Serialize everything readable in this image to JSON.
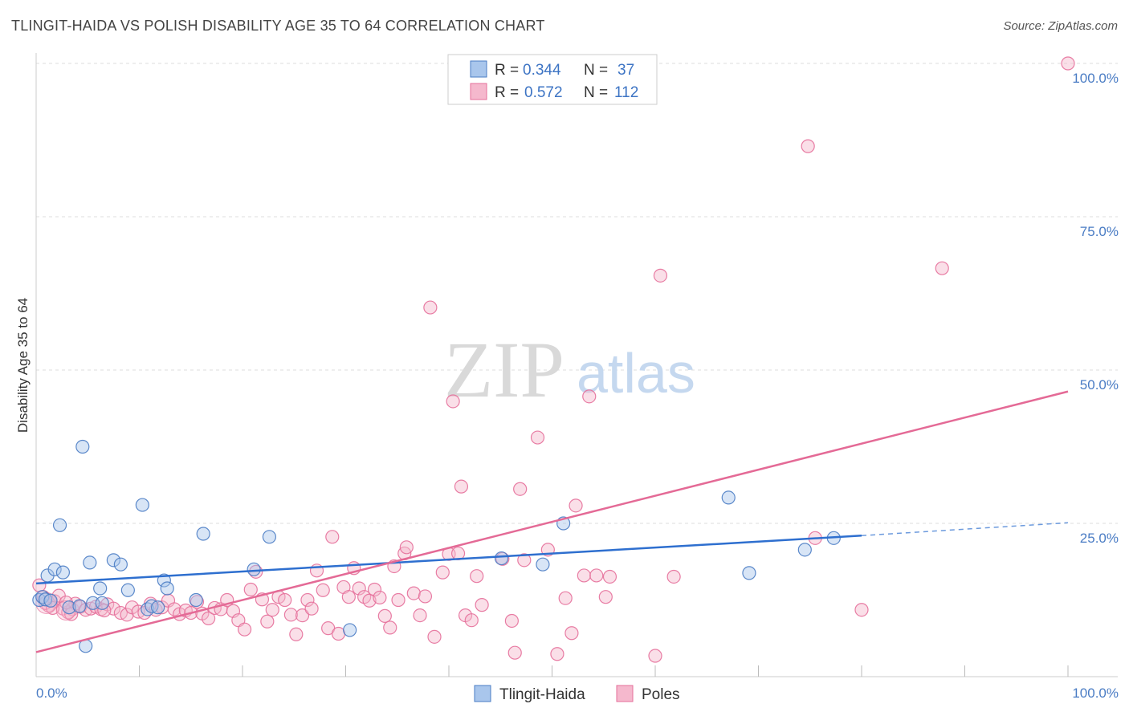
{
  "title": "TLINGIT-HAIDA VS POLISH DISABILITY AGE 35 TO 64 CORRELATION CHART",
  "source": "Source: ZipAtlas.com",
  "watermark": {
    "zip": "ZIP",
    "atlas": "atlas"
  },
  "colors": {
    "blue": "#4a7cc4",
    "blue_fill": "#a9c6ec",
    "blue_line": "#2e6fcf",
    "pink": "#e56f9a",
    "pink_fill": "#f5b8cd",
    "pink_line": "#e46a96",
    "grid": "#dddddd",
    "axis_text": "#4a7cc4"
  },
  "legend": {
    "rows": [
      {
        "r_label": "R =",
        "r_value": "0.344",
        "n_label": "N =",
        "n_value": "37",
        "series": "Tlingit-Haida"
      },
      {
        "r_label": "R =",
        "r_value": "0.572",
        "n_label": "N =",
        "n_value": "112",
        "series": "Poles"
      }
    ]
  },
  "bottom_legend": [
    "Tlingit-Haida",
    "Poles"
  ],
  "chart_data": {
    "type": "scatter",
    "title": "TLINGIT-HAIDA VS POLISH DISABILITY AGE 35 TO 64 CORRELATION CHART",
    "xlabel": "",
    "ylabel": "Disability Age 35 to 64",
    "xlim": [
      0,
      100
    ],
    "ylim": [
      0,
      100
    ],
    "x_tick_labels": [
      {
        "value": 0,
        "label": "0.0%"
      },
      {
        "value": 100,
        "label": "100.0%"
      }
    ],
    "y_tick_labels": [
      {
        "value": 25,
        "label": "25.0%"
      },
      {
        "value": 50,
        "label": "50.0%"
      },
      {
        "value": 75,
        "label": "75.0%"
      },
      {
        "value": 100,
        "label": "100.0%"
      }
    ],
    "legend_position": "top-center",
    "series": [
      {
        "name": "Tlingit-Haida",
        "color": "#4a7cc4",
        "r": 0.344,
        "n": 37,
        "trend": {
          "x0": 0,
          "y0": 15.2,
          "x1": 80,
          "y1": 23.0,
          "dashed_to_x": 100,
          "dashed_to_y": 25.1
        },
        "points": [
          [
            0.3,
            12.5
          ],
          [
            0.6,
            13.0
          ],
          [
            0.9,
            12.6
          ],
          [
            1.1,
            16.5
          ],
          [
            1.8,
            17.5
          ],
          [
            2.3,
            24.7
          ],
          [
            2.6,
            17.0
          ],
          [
            3.2,
            11.3
          ],
          [
            4.2,
            11.5
          ],
          [
            4.5,
            37.5
          ],
          [
            5.2,
            18.6
          ],
          [
            5.5,
            12.0
          ],
          [
            6.2,
            14.4
          ],
          [
            6.4,
            12.0
          ],
          [
            7.5,
            19.0
          ],
          [
            8.2,
            18.3
          ],
          [
            8.9,
            14.1
          ],
          [
            10.3,
            28.0
          ],
          [
            10.8,
            11.0
          ],
          [
            11.2,
            11.5
          ],
          [
            11.8,
            11.3
          ],
          [
            12.4,
            15.7
          ],
          [
            12.7,
            14.4
          ],
          [
            15.5,
            12.5
          ],
          [
            16.2,
            23.3
          ],
          [
            21.1,
            17.5
          ],
          [
            22.6,
            22.8
          ],
          [
            30.4,
            7.6
          ],
          [
            45.1,
            19.3
          ],
          [
            49.1,
            18.3
          ],
          [
            51.1,
            25.0
          ],
          [
            67.1,
            29.2
          ],
          [
            69.1,
            16.9
          ],
          [
            74.5,
            20.7
          ],
          [
            77.3,
            22.6
          ],
          [
            4.8,
            5.0
          ],
          [
            1.4,
            12.4
          ]
        ]
      },
      {
        "name": "Poles",
        "color": "#e56f9a",
        "r": 0.572,
        "n": 112,
        "trend": {
          "x0": 0,
          "y0": 4.0,
          "x1": 100,
          "y1": 46.5
        },
        "points": [
          [
            0.3,
            14.9
          ],
          [
            0.7,
            13.0
          ],
          [
            1.2,
            11.6
          ],
          [
            1.8,
            12.3
          ],
          [
            2.2,
            13.2
          ],
          [
            2.6,
            11.1
          ],
          [
            3.1,
            10.5
          ],
          [
            3.5,
            11.0
          ],
          [
            3.8,
            11.9
          ],
          [
            4.3,
            11.4
          ],
          [
            4.8,
            10.9
          ],
          [
            5.3,
            11.1
          ],
          [
            5.8,
            11.4
          ],
          [
            6.3,
            11.0
          ],
          [
            6.9,
            11.8
          ],
          [
            7.5,
            11.1
          ],
          [
            8.2,
            10.4
          ],
          [
            8.8,
            10.1
          ],
          [
            9.3,
            11.3
          ],
          [
            9.9,
            10.6
          ],
          [
            10.5,
            10.4
          ],
          [
            11.1,
            11.9
          ],
          [
            11.6,
            10.9
          ],
          [
            12.2,
            11.3
          ],
          [
            12.8,
            12.4
          ],
          [
            13.4,
            11.0
          ],
          [
            13.9,
            10.2
          ],
          [
            14.5,
            10.8
          ],
          [
            15.0,
            10.4
          ],
          [
            15.6,
            12.2
          ],
          [
            16.1,
            10.3
          ],
          [
            16.7,
            9.5
          ],
          [
            17.3,
            11.2
          ],
          [
            17.9,
            11.0
          ],
          [
            18.5,
            12.5
          ],
          [
            19.1,
            10.7
          ],
          [
            19.6,
            9.2
          ],
          [
            20.2,
            7.7
          ],
          [
            20.8,
            14.2
          ],
          [
            21.3,
            17.1
          ],
          [
            21.9,
            12.6
          ],
          [
            22.4,
            9.0
          ],
          [
            22.9,
            10.9
          ],
          [
            23.5,
            13.0
          ],
          [
            24.1,
            12.5
          ],
          [
            24.7,
            10.1
          ],
          [
            25.2,
            6.9
          ],
          [
            25.8,
            10.0
          ],
          [
            26.3,
            12.5
          ],
          [
            26.7,
            11.1
          ],
          [
            27.2,
            17.3
          ],
          [
            27.8,
            14.1
          ],
          [
            28.3,
            7.9
          ],
          [
            28.7,
            22.8
          ],
          [
            29.3,
            7.0
          ],
          [
            29.8,
            14.6
          ],
          [
            30.3,
            13.0
          ],
          [
            30.8,
            17.7
          ],
          [
            31.3,
            14.4
          ],
          [
            31.8,
            13.0
          ],
          [
            32.3,
            12.4
          ],
          [
            32.8,
            14.2
          ],
          [
            33.3,
            12.9
          ],
          [
            33.8,
            9.9
          ],
          [
            34.3,
            8.0
          ],
          [
            34.7,
            18.0
          ],
          [
            35.1,
            12.5
          ],
          [
            35.7,
            20.1
          ],
          [
            35.9,
            21.1
          ],
          [
            36.6,
            13.6
          ],
          [
            37.2,
            10.0
          ],
          [
            37.7,
            13.1
          ],
          [
            38.2,
            60.2
          ],
          [
            38.6,
            6.5
          ],
          [
            39.4,
            17.0
          ],
          [
            40.0,
            20.0
          ],
          [
            40.4,
            44.9
          ],
          [
            40.9,
            20.1
          ],
          [
            41.2,
            31.0
          ],
          [
            41.6,
            10.0
          ],
          [
            42.2,
            9.2
          ],
          [
            42.7,
            16.4
          ],
          [
            43.2,
            11.7
          ],
          [
            45.2,
            19.2
          ],
          [
            46.1,
            9.1
          ],
          [
            46.4,
            3.9
          ],
          [
            46.9,
            30.6
          ],
          [
            47.3,
            19.0
          ],
          [
            48.6,
            39.0
          ],
          [
            49.6,
            20.7
          ],
          [
            50.5,
            3.7
          ],
          [
            51.3,
            12.8
          ],
          [
            51.9,
            7.1
          ],
          [
            52.3,
            27.9
          ],
          [
            53.1,
            16.5
          ],
          [
            53.6,
            45.7
          ],
          [
            54.3,
            16.5
          ],
          [
            55.2,
            13.0
          ],
          [
            55.6,
            16.3
          ],
          [
            60.0,
            3.4
          ],
          [
            60.5,
            65.4
          ],
          [
            61.8,
            16.3
          ],
          [
            74.8,
            86.5
          ],
          [
            75.5,
            22.6
          ],
          [
            80.0,
            10.9
          ],
          [
            87.8,
            66.6
          ],
          [
            100.0,
            100.0
          ],
          [
            0.9,
            12.0
          ],
          [
            1.6,
            11.2
          ],
          [
            2.9,
            12.1
          ],
          [
            3.4,
            10.2
          ],
          [
            6.6,
            10.8
          ]
        ]
      }
    ]
  }
}
